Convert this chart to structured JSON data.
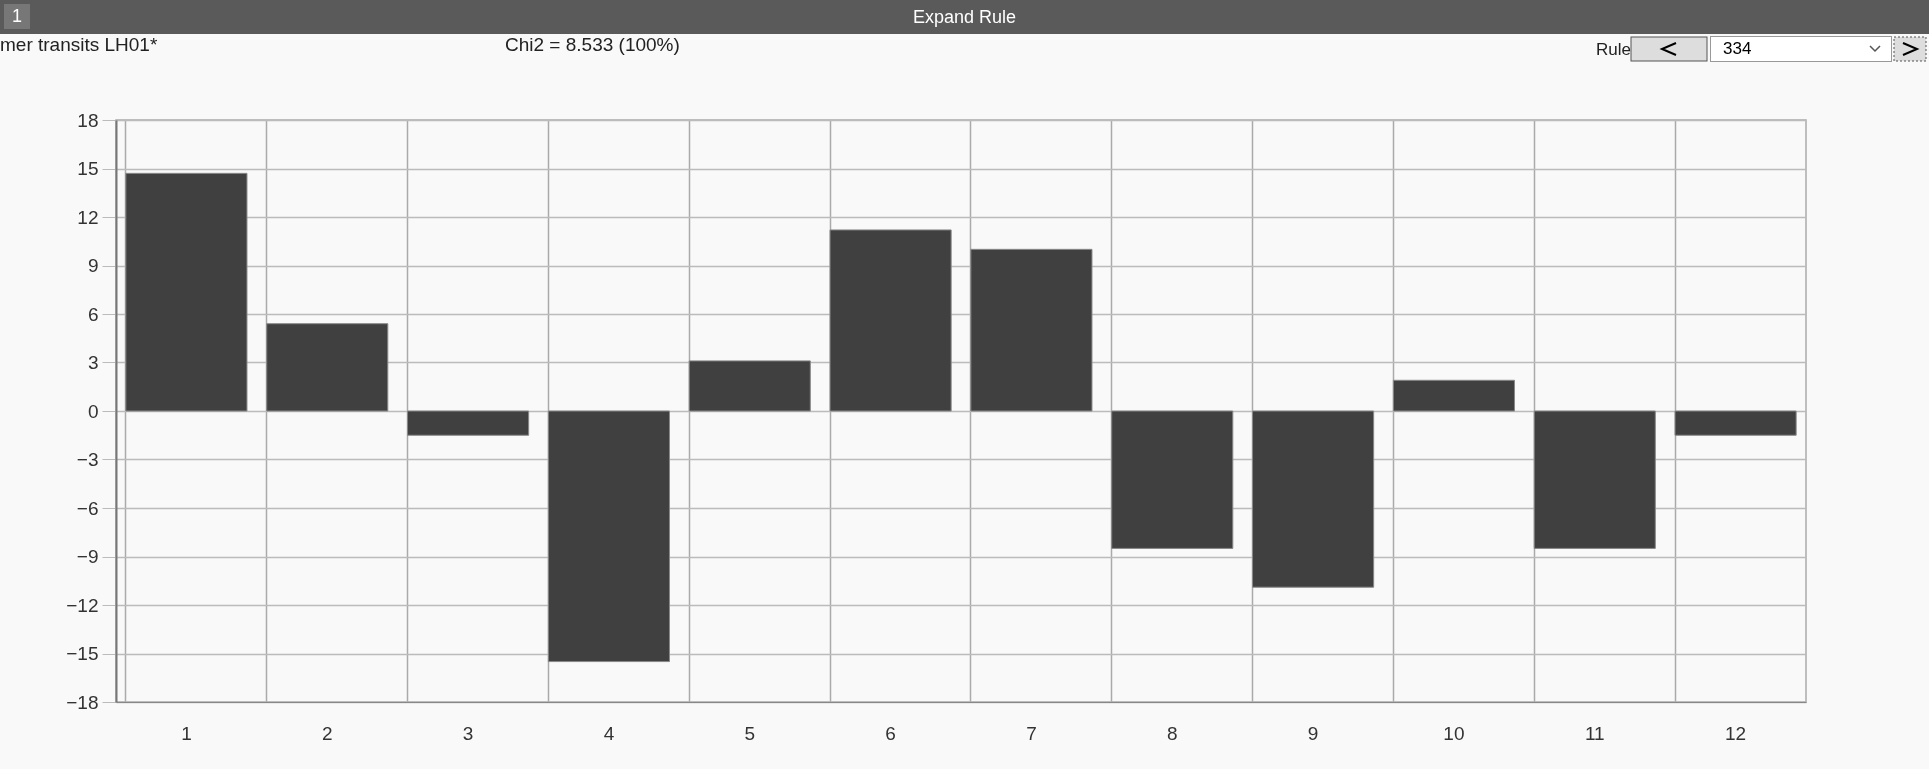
{
  "chart_data": {
    "type": "bar",
    "title": "Expand Rule",
    "annotations": [
      "1",
      "mer transits LH01*",
      "Chi2 = 8.533 (100%)",
      "Rule",
      "334"
    ],
    "categories": [
      "1",
      "2",
      "3",
      "4",
      "5",
      "6",
      "7",
      "8",
      "9",
      "10",
      "11",
      "12"
    ],
    "values": [
      14.7,
      5.4,
      -1.5,
      -15.5,
      3.1,
      11.2,
      10.0,
      -8.5,
      -10.9,
      1.9,
      -8.5,
      -1.5
    ],
    "color": "#404040",
    "ylim": [
      -18,
      18
    ],
    "yticks": [
      -18,
      -15,
      -12,
      -9,
      -6,
      -3,
      0,
      3,
      6,
      9,
      12,
      15,
      18
    ],
    "grid": true
  }
}
